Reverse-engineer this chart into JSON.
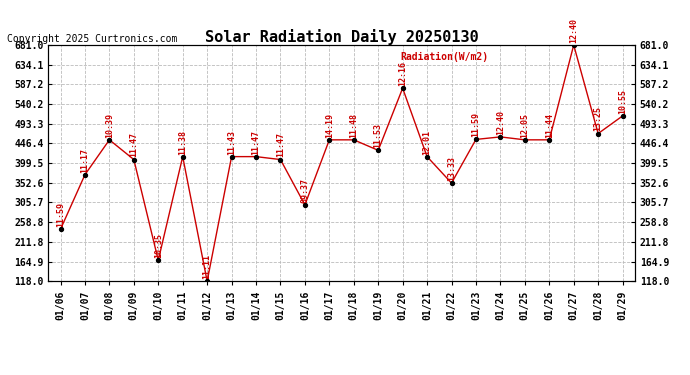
{
  "title": "Solar Radiation Daily 20250130",
  "copyright": "Copyright 2025 Curtronics.com",
  "legend_label": "Radiation(W/m2)",
  "dates": [
    "01/06",
    "01/07",
    "01/08",
    "01/09",
    "01/10",
    "01/11",
    "01/12",
    "01/13",
    "01/14",
    "01/15",
    "01/16",
    "01/17",
    "01/18",
    "01/19",
    "01/20",
    "01/21",
    "01/22",
    "01/23",
    "01/24",
    "01/25",
    "01/26",
    "01/27",
    "01/28",
    "01/29"
  ],
  "values": [
    242,
    372,
    455,
    408,
    168,
    415,
    118,
    415,
    415,
    408,
    300,
    455,
    455,
    430,
    578,
    415,
    352,
    456,
    462,
    455,
    455,
    681,
    470,
    512
  ],
  "time_labels": [
    "11:59",
    "11:17",
    "10:39",
    "11:47",
    "10:35",
    "11:38",
    "11:11",
    "11:43",
    "11:47",
    "11:47",
    "09:37",
    "14:19",
    "11:48",
    "11:53",
    "12:16",
    "12:01",
    "13:33",
    "11:59",
    "12:40",
    "12:05",
    "11:44",
    "12:40",
    "13:25",
    "10:55"
  ],
  "ylim_min": 118.0,
  "ylim_max": 681.0,
  "yticks": [
    118.0,
    164.9,
    211.8,
    258.8,
    305.7,
    352.6,
    399.5,
    446.4,
    493.3,
    540.2,
    587.2,
    634.1,
    681.0
  ],
  "line_color": "#cc0000",
  "marker_color": "#000000",
  "bg_color": "#ffffff",
  "grid_color": "#bbbbbb",
  "title_fontsize": 11,
  "label_fontsize": 6,
  "tick_fontsize": 7,
  "copyright_fontsize": 7
}
